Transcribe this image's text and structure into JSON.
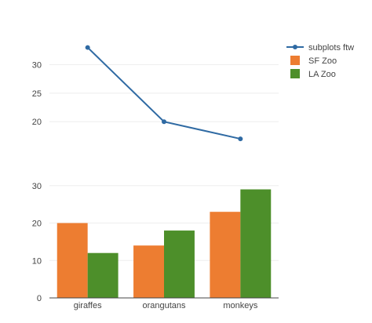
{
  "chart_data": [
    {
      "type": "line",
      "x": [
        "giraffes",
        "orangutans",
        "monkeys"
      ],
      "series": [
        {
          "name": "subplots ftw",
          "values": [
            33,
            20,
            17
          ],
          "color": "#2f6aa3"
        }
      ],
      "ylim": [
        15.5,
        35
      ],
      "yticks": [
        20,
        25,
        30
      ],
      "grid": true,
      "xlabel": "",
      "ylabel": ""
    },
    {
      "type": "bar",
      "categories": [
        "giraffes",
        "orangutans",
        "monkeys"
      ],
      "series": [
        {
          "name": "SF Zoo",
          "values": [
            20,
            14,
            23
          ],
          "color": "#ed7d31"
        },
        {
          "name": "LA Zoo",
          "values": [
            12,
            18,
            29
          ],
          "color": "#4d8f2a"
        }
      ],
      "ylim": [
        0,
        31
      ],
      "yticks": [
        0,
        10,
        20,
        30
      ],
      "grid": true,
      "xlabel": "",
      "ylabel": ""
    }
  ],
  "legend": {
    "position": "top-right",
    "items": [
      {
        "label": "subplots ftw",
        "symbol": "line-marker",
        "color": "#2f6aa3"
      },
      {
        "label": "SF Zoo",
        "symbol": "square",
        "color": "#ed7d31"
      },
      {
        "label": "LA Zoo",
        "symbol": "square",
        "color": "#4d8f2a"
      }
    ]
  }
}
